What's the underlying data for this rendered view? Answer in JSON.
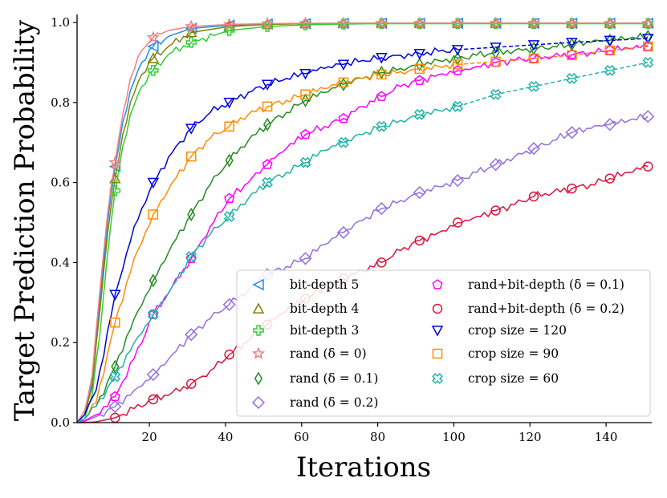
{
  "chart_data": {
    "type": "line",
    "title": "",
    "xlabel": "Iterations",
    "ylabel": "Target Prediction Probability",
    "xlim": [
      1,
      152
    ],
    "ylim": [
      0.0,
      1.02
    ],
    "xticks": [
      20,
      40,
      60,
      80,
      100,
      120,
      140
    ],
    "yticks": [
      0.0,
      0.2,
      0.4,
      0.6,
      0.8,
      1.0
    ],
    "xtick_labels": [
      "20",
      "40",
      "60",
      "80",
      "100",
      "120",
      "140"
    ],
    "ytick_labels": [
      "0.0",
      "0.2",
      "0.4",
      "0.6",
      "0.8",
      "1.0"
    ],
    "legend_position": "lower-right",
    "legend_columns": 2,
    "series": [
      {
        "name": "bit-depth 5",
        "color": "#1f8ef1",
        "marker": "triangle-left",
        "style": "solid",
        "x": [
          1,
          3,
          5,
          7,
          9,
          11,
          13,
          15,
          18,
          21,
          25,
          31,
          41,
          51,
          61,
          71,
          81,
          91,
          101,
          111,
          121,
          131,
          141,
          151
        ],
        "values": [
          0.0,
          0.02,
          0.1,
          0.3,
          0.5,
          0.64,
          0.75,
          0.83,
          0.9,
          0.94,
          0.965,
          0.985,
          0.993,
          0.996,
          0.997,
          0.998,
          0.998,
          0.998,
          0.998,
          0.998,
          0.998,
          0.998,
          0.998,
          0.998
        ]
      },
      {
        "name": "bit-depth 4",
        "color": "#808000",
        "marker": "triangle-up",
        "style": "solid",
        "x": [
          1,
          3,
          5,
          7,
          9,
          11,
          13,
          15,
          18,
          21,
          25,
          31,
          41,
          51,
          61,
          71,
          81,
          91,
          101,
          111,
          121,
          131,
          141,
          151
        ],
        "values": [
          0.0,
          0.02,
          0.09,
          0.28,
          0.47,
          0.61,
          0.72,
          0.8,
          0.87,
          0.91,
          0.94,
          0.975,
          0.99,
          0.995,
          0.997,
          0.998,
          0.998,
          0.998,
          0.998,
          0.998,
          0.998,
          0.998,
          0.998,
          0.998
        ]
      },
      {
        "name": "bit-depth 3",
        "color": "#33cc33",
        "marker": "plus",
        "style": "solid",
        "x": [
          1,
          3,
          5,
          7,
          9,
          11,
          13,
          15,
          18,
          21,
          25,
          31,
          41,
          51,
          61,
          71,
          81,
          91,
          101,
          111,
          121,
          131,
          141,
          151
        ],
        "values": [
          0.0,
          0.01,
          0.07,
          0.22,
          0.42,
          0.58,
          0.69,
          0.77,
          0.84,
          0.88,
          0.92,
          0.95,
          0.98,
          0.99,
          0.994,
          0.996,
          0.997,
          0.997,
          0.997,
          0.997,
          0.997,
          0.997,
          0.997,
          0.997
        ]
      },
      {
        "name": "rand (δ = 0)",
        "color": "#f08080",
        "marker": "star",
        "style": "solid",
        "x": [
          1,
          3,
          5,
          7,
          9,
          11,
          13,
          15,
          18,
          21,
          25,
          31,
          41,
          51,
          61,
          71,
          81,
          91,
          101,
          111,
          121,
          131,
          141,
          151
        ],
        "values": [
          0.0,
          0.03,
          0.12,
          0.33,
          0.52,
          0.65,
          0.77,
          0.86,
          0.93,
          0.962,
          0.98,
          0.99,
          0.995,
          0.997,
          0.998,
          0.998,
          0.998,
          0.998,
          0.998,
          0.998,
          0.998,
          0.998,
          0.998,
          0.998
        ]
      },
      {
        "name": "rand (δ = 0.1)",
        "color": "#228b22",
        "marker": "thin-diamond",
        "style": "solid",
        "x": [
          1,
          3,
          6,
          11,
          16,
          21,
          26,
          31,
          36,
          41,
          46,
          51,
          56,
          61,
          66,
          71,
          76,
          81,
          86,
          91,
          96,
          101,
          106,
          111,
          116,
          121,
          126,
          131,
          136,
          141,
          146,
          151
        ],
        "values": [
          0.0,
          0.01,
          0.04,
          0.14,
          0.26,
          0.355,
          0.445,
          0.52,
          0.595,
          0.655,
          0.705,
          0.745,
          0.775,
          0.805,
          0.825,
          0.845,
          0.86,
          0.875,
          0.885,
          0.895,
          0.905,
          0.91,
          0.918,
          0.925,
          0.93,
          0.935,
          0.94,
          0.945,
          0.95,
          0.955,
          0.96,
          0.965
        ]
      },
      {
        "name": "rand (δ = 0.2)",
        "color": "#9370db",
        "marker": "diamond",
        "style": "solid",
        "x": [
          1,
          3,
          6,
          11,
          16,
          21,
          26,
          31,
          36,
          41,
          46,
          51,
          56,
          61,
          66,
          71,
          76,
          81,
          86,
          91,
          96,
          101,
          106,
          111,
          116,
          121,
          126,
          131,
          136,
          141,
          146,
          151
        ],
        "values": [
          0.0,
          0.003,
          0.015,
          0.04,
          0.08,
          0.12,
          0.17,
          0.22,
          0.26,
          0.295,
          0.33,
          0.37,
          0.39,
          0.41,
          0.445,
          0.475,
          0.505,
          0.535,
          0.555,
          0.575,
          0.59,
          0.605,
          0.625,
          0.645,
          0.665,
          0.685,
          0.705,
          0.725,
          0.735,
          0.745,
          0.755,
          0.765
        ]
      },
      {
        "name": "rand+bit-depth (δ = 0.1)",
        "color": "#ff00ff",
        "marker": "pentagon",
        "style": "solid",
        "x": [
          1,
          3,
          6,
          11,
          16,
          21,
          26,
          31,
          36,
          41,
          46,
          51,
          56,
          61,
          66,
          71,
          76,
          81,
          86,
          91,
          96,
          101,
          106,
          111,
          116,
          121,
          126,
          131,
          136,
          141,
          146,
          151
        ],
        "values": [
          0.0,
          0.005,
          0.02,
          0.065,
          0.16,
          0.27,
          0.34,
          0.41,
          0.49,
          0.56,
          0.6,
          0.645,
          0.685,
          0.72,
          0.74,
          0.76,
          0.79,
          0.815,
          0.84,
          0.855,
          0.87,
          0.88,
          0.89,
          0.9,
          0.905,
          0.91,
          0.915,
          0.92,
          0.925,
          0.93,
          0.935,
          0.94
        ]
      },
      {
        "name": "rand+bit-depth (δ = 0.2)",
        "color": "#dc143c",
        "marker": "circle",
        "style": "solid",
        "x": [
          1,
          3,
          6,
          11,
          16,
          21,
          26,
          31,
          36,
          41,
          46,
          51,
          56,
          61,
          66,
          71,
          76,
          81,
          86,
          91,
          96,
          101,
          106,
          111,
          116,
          121,
          126,
          131,
          136,
          141,
          146,
          151
        ],
        "values": [
          0.0,
          0.0,
          0.002,
          0.012,
          0.035,
          0.058,
          0.075,
          0.097,
          0.13,
          0.17,
          0.205,
          0.245,
          0.28,
          0.31,
          0.335,
          0.36,
          0.38,
          0.4,
          0.43,
          0.455,
          0.475,
          0.5,
          0.515,
          0.53,
          0.545,
          0.565,
          0.575,
          0.585,
          0.595,
          0.61,
          0.625,
          0.64
        ]
      },
      {
        "name": "crop size = 120",
        "color": "#0000dd",
        "marker": "triangle-down",
        "style": "solid-then-dashed",
        "x": [
          1,
          3,
          6,
          11,
          16,
          21,
          26,
          31,
          36,
          41,
          46,
          51,
          56,
          61,
          66,
          71,
          76,
          81,
          86,
          91,
          96,
          101,
          111,
          121,
          131,
          141,
          151
        ],
        "values": [
          0.0,
          0.02,
          0.08,
          0.32,
          0.49,
          0.6,
          0.675,
          0.735,
          0.775,
          0.8,
          0.825,
          0.845,
          0.86,
          0.872,
          0.885,
          0.895,
          0.905,
          0.912,
          0.918,
          0.922,
          0.928,
          0.932,
          0.938,
          0.944,
          0.95,
          0.955,
          0.96
        ]
      },
      {
        "name": "crop size = 90",
        "color": "#ff8c00",
        "marker": "square",
        "style": "solid-then-dashed",
        "x": [
          1,
          3,
          6,
          11,
          16,
          21,
          26,
          31,
          36,
          41,
          46,
          51,
          56,
          61,
          66,
          71,
          76,
          81,
          86,
          91,
          96,
          101,
          111,
          121,
          131,
          141,
          151
        ],
        "values": [
          0.0,
          0.01,
          0.05,
          0.25,
          0.41,
          0.52,
          0.6,
          0.665,
          0.71,
          0.74,
          0.77,
          0.79,
          0.805,
          0.82,
          0.835,
          0.85,
          0.86,
          0.87,
          0.877,
          0.884,
          0.89,
          0.895,
          0.902,
          0.91,
          0.918,
          0.93,
          0.94
        ]
      },
      {
        "name": "crop size = 60",
        "color": "#20b2aa",
        "marker": "x-circle",
        "style": "solid-then-dashed",
        "x": [
          1,
          3,
          6,
          11,
          16,
          21,
          26,
          31,
          36,
          41,
          46,
          51,
          56,
          61,
          66,
          71,
          76,
          81,
          86,
          91,
          96,
          101,
          111,
          121,
          131,
          141,
          151
        ],
        "values": [
          0.0,
          0.01,
          0.04,
          0.115,
          0.2,
          0.27,
          0.34,
          0.415,
          0.47,
          0.515,
          0.56,
          0.6,
          0.625,
          0.65,
          0.68,
          0.7,
          0.72,
          0.74,
          0.755,
          0.77,
          0.78,
          0.79,
          0.82,
          0.84,
          0.86,
          0.88,
          0.9
        ]
      }
    ],
    "dash_start_x": 101
  }
}
